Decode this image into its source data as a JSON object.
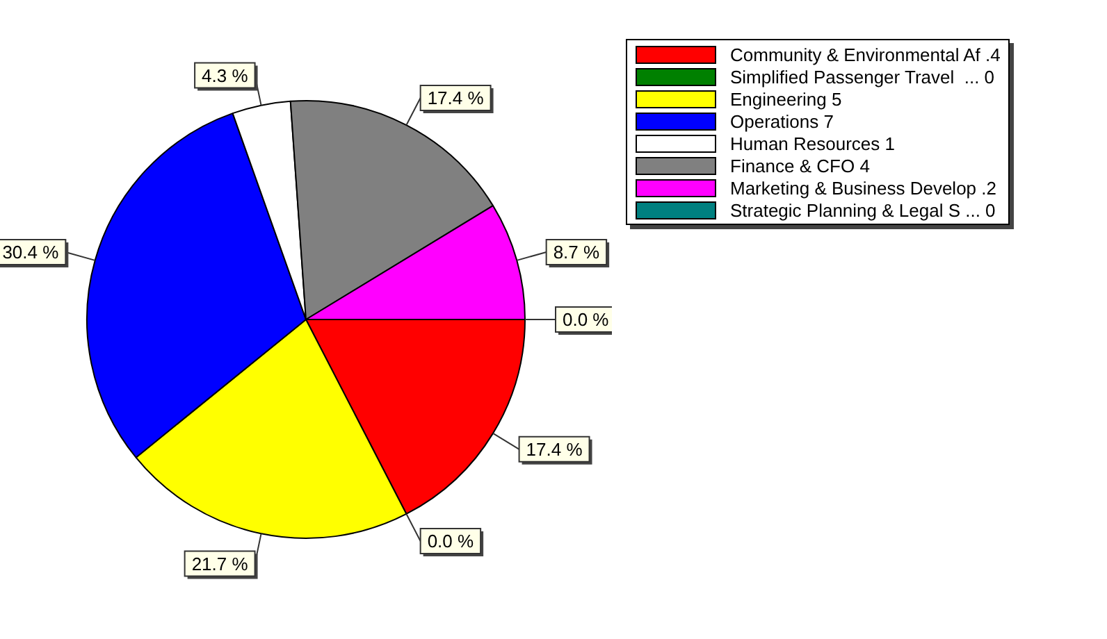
{
  "chart_data": {
    "type": "pie",
    "categories": [
      "Community & Environmental Af .4",
      "Simplified Passenger Travel  ... 0",
      "Engineering 5",
      "Operations 7",
      "Human Resources 1",
      "Finance & CFO 4",
      "Marketing & Business Develop .2",
      "Strategic Planning & Legal S ... 0"
    ],
    "values": [
      17.4,
      0,
      21.7,
      30.4,
      4.3,
      17.4,
      8.7,
      0
    ],
    "value_labels": [
      "17.4 %",
      "0.0 %",
      "21.7 %",
      "30.4 %",
      "4.3 %",
      "17.4 %",
      "8.7 %",
      "0.0 %"
    ],
    "colors": [
      "#ff0000",
      "#008000",
      "#ffff00",
      "#0000ff",
      "#ffffff",
      "#808080",
      "#ff00ff",
      "#008080"
    ],
    "legend": "right"
  }
}
